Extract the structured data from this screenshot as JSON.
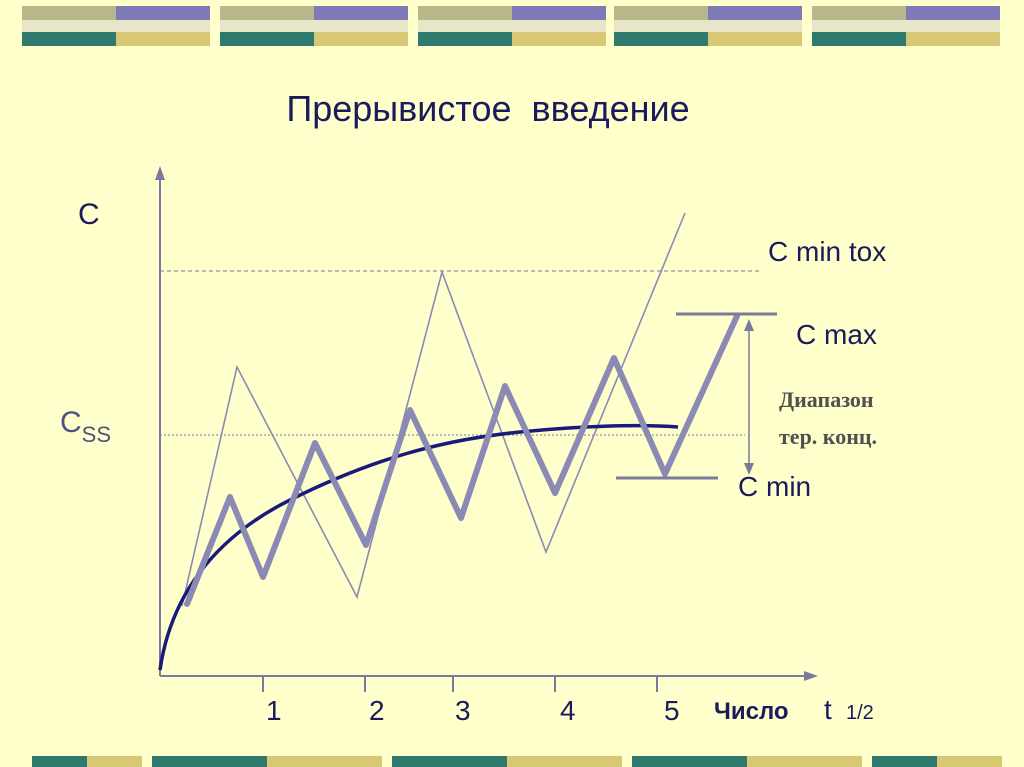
{
  "slide": {
    "title": "Прерывистое  введение"
  },
  "labels": {
    "y_axis": "C",
    "css_main": "C",
    "css_sub": "SS",
    "c_min_tox": "C min tox",
    "c_max": "C max",
    "range_line1": "Диапазон",
    "range_line2": "тер. конц.",
    "c_min": "C min",
    "x_word": "Число",
    "x_t": "t",
    "x_half": "1/2"
  },
  "x_ticks": [
    "1",
    "2",
    "3",
    "4",
    "5"
  ],
  "colors": {
    "background": "#FFFFCC",
    "axis": "#7A7A9E",
    "curve": "#1A1A7A",
    "thick_line": "#8A8AB5",
    "thin_line": "#8A8AB5",
    "text": "#1A1A5C"
  },
  "decoration": {
    "palette": [
      "#8E8AC4",
      "#B7B78A",
      "#2E7A6E",
      "#E3D68A",
      "#C8D6C8",
      "#6E9A8A"
    ]
  }
}
